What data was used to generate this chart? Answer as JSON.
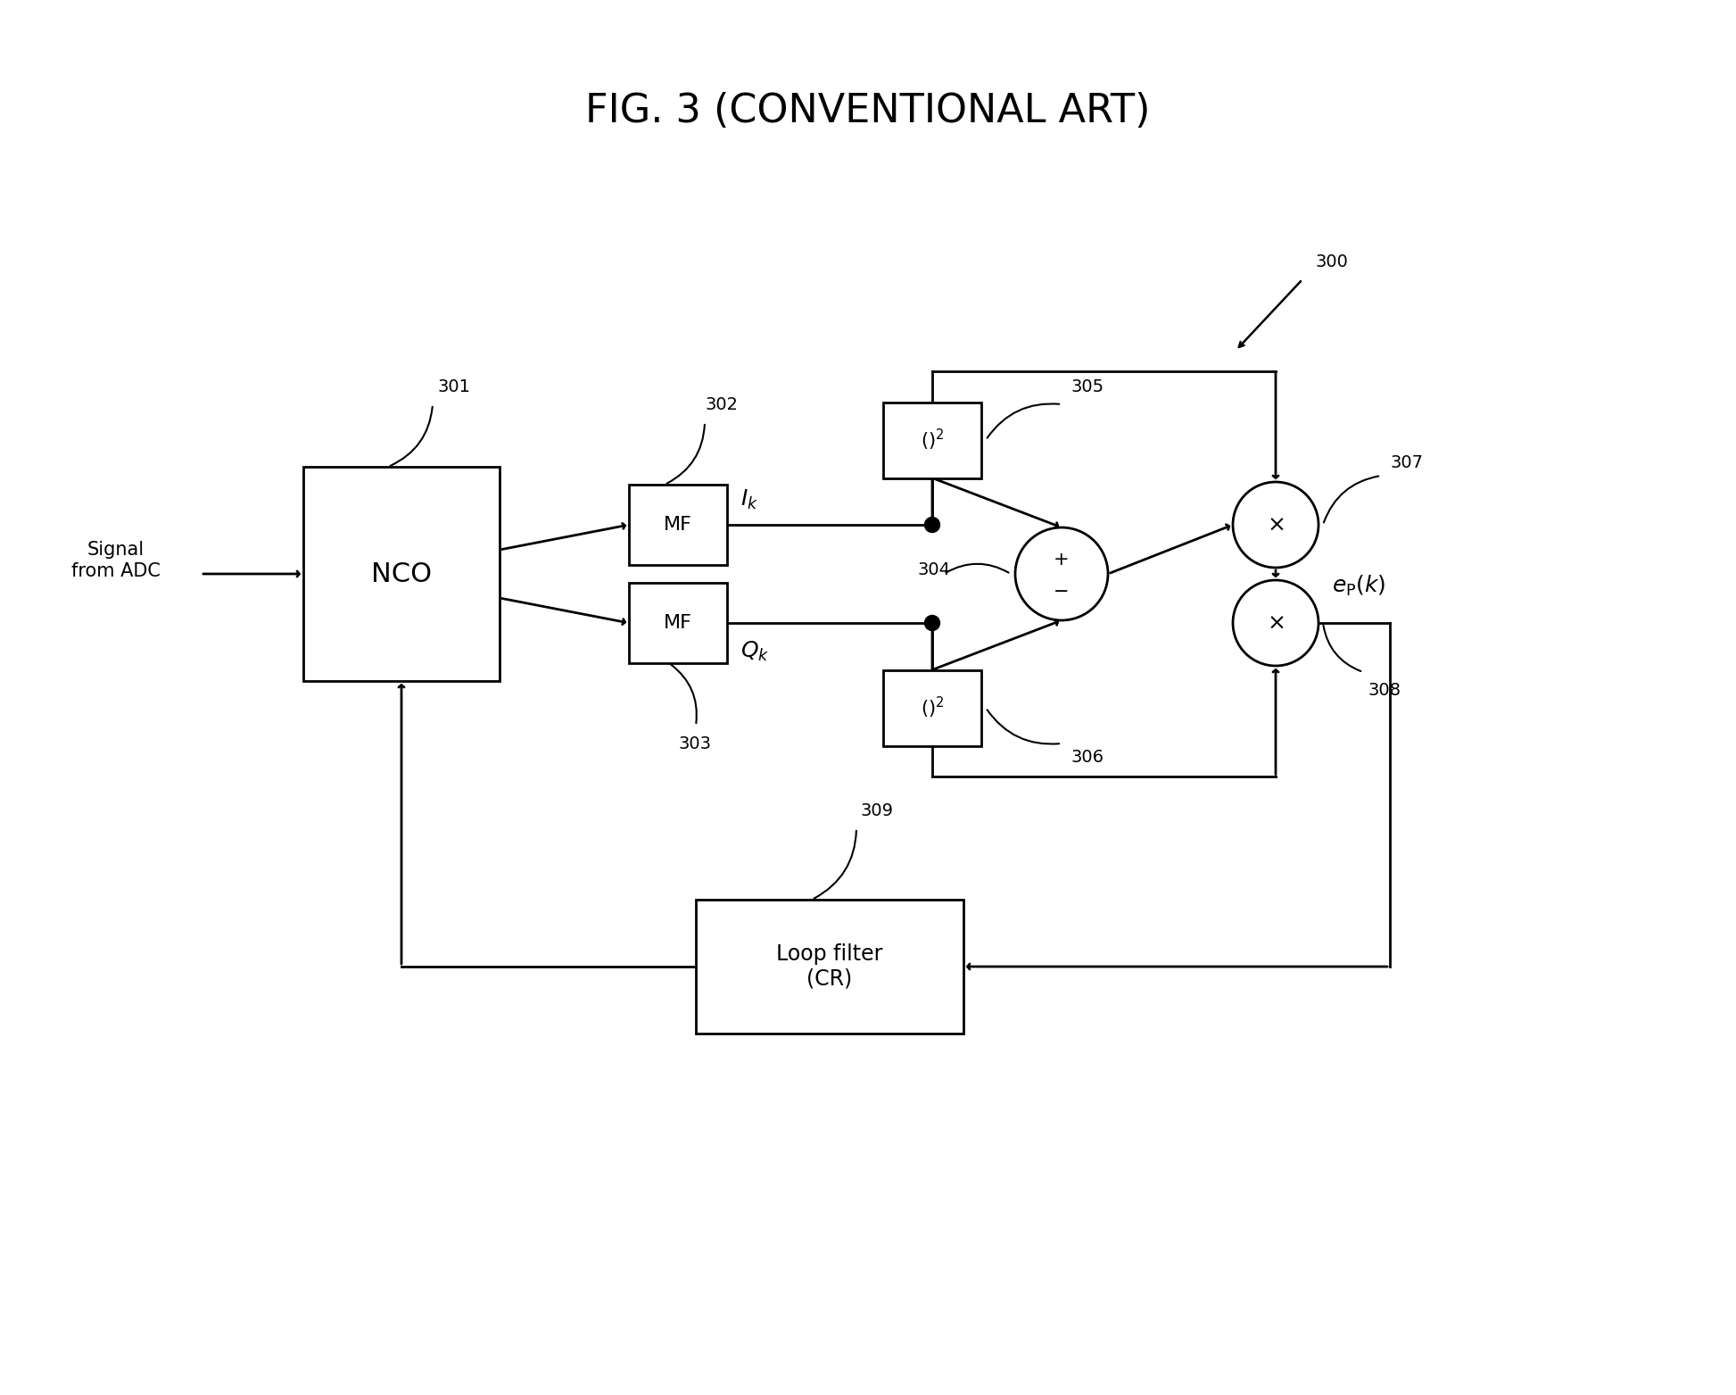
{
  "title": "FIG. 3 (CONVENTIONAL ART)",
  "title_fontsize": 32,
  "background_color": "#ffffff",
  "text_signal_from_adc": "Signal\nfrom ADC",
  "text_nco": "NCO",
  "text_mf": "MF",
  "text_loop_filter": "Loop filter\n(CR)",
  "labels": [
    "300",
    "301",
    "302",
    "303",
    "304",
    "305",
    "306",
    "307",
    "308",
    "309"
  ]
}
